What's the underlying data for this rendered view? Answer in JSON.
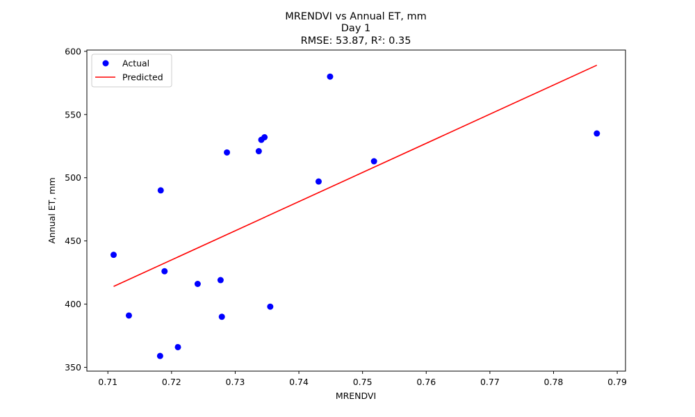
{
  "chart_data": {
    "type": "scatter",
    "title_lines": [
      "MRENDVI vs Annual ET, mm",
      "Day 1",
      "RMSE: 53.87, R²: 0.35"
    ],
    "xlabel": "MRENDVI",
    "ylabel": "Annual ET, mm",
    "xlim": [
      0.7067,
      0.7913
    ],
    "ylim": [
      347,
      601
    ],
    "xticks": [
      0.71,
      0.72,
      0.73,
      0.74,
      0.75,
      0.76,
      0.77,
      0.78,
      0.79
    ],
    "xtick_labels": [
      "0.71",
      "0.72",
      "0.73",
      "0.74",
      "0.75",
      "0.76",
      "0.77",
      "0.78",
      "0.79"
    ],
    "yticks": [
      350,
      400,
      450,
      500,
      550,
      600
    ],
    "ytick_labels": [
      "350",
      "400",
      "450",
      "500",
      "550",
      "600"
    ],
    "grid": false,
    "legend_position": "top-left",
    "series": [
      {
        "name": "Actual",
        "kind": "scatter",
        "color": "#0000ff",
        "points": [
          [
            0.7109,
            439
          ],
          [
            0.7133,
            391
          ],
          [
            0.7182,
            359
          ],
          [
            0.7183,
            490
          ],
          [
            0.7189,
            426
          ],
          [
            0.721,
            366
          ],
          [
            0.7241,
            416
          ],
          [
            0.7277,
            419
          ],
          [
            0.7279,
            390
          ],
          [
            0.7287,
            520
          ],
          [
            0.7337,
            521
          ],
          [
            0.7341,
            530
          ],
          [
            0.7346,
            532
          ],
          [
            0.7355,
            398
          ],
          [
            0.7431,
            497
          ],
          [
            0.7449,
            580
          ],
          [
            0.7518,
            513
          ],
          [
            0.7868,
            535
          ]
        ]
      },
      {
        "name": "Predicted",
        "kind": "line",
        "color": "#ff0000",
        "points": [
          [
            0.7109,
            414
          ],
          [
            0.7868,
            589
          ]
        ]
      }
    ]
  }
}
